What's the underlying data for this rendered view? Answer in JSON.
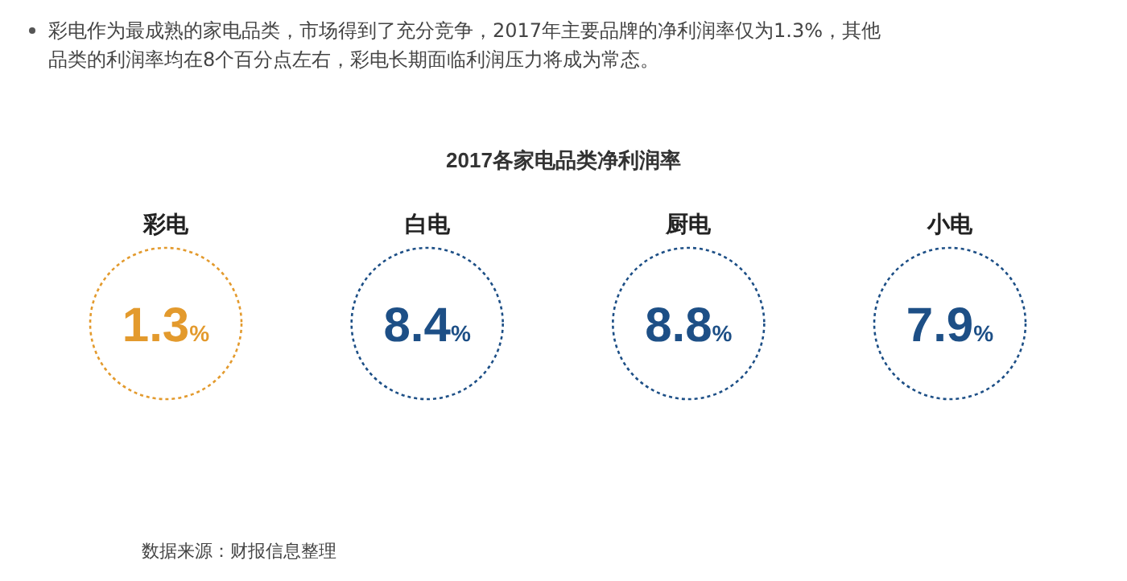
{
  "chart_data": {
    "type": "other",
    "subtitle": "彩电作为最成熟的家电品类，市场得到了充分竞争，2017年主要品牌的净利润率仅为1.3%，其他品类的利润率均在8个百分点左右，彩电长期面临利润压力将成为常态。",
    "title": "2017各家电品类净利润率",
    "categories": [
      "彩电",
      "白电",
      "厨电",
      "小电"
    ],
    "values": [
      1.3,
      8.4,
      8.8,
      7.9
    ],
    "value_labels": [
      "1.3%",
      "8.4%",
      "8.8%",
      "7.9%"
    ],
    "colors": [
      "#e39a2d",
      "#1d4f86",
      "#1d4f86",
      "#1d4f86"
    ],
    "annotations": [
      "数据来源：财报信息整理"
    ]
  }
}
